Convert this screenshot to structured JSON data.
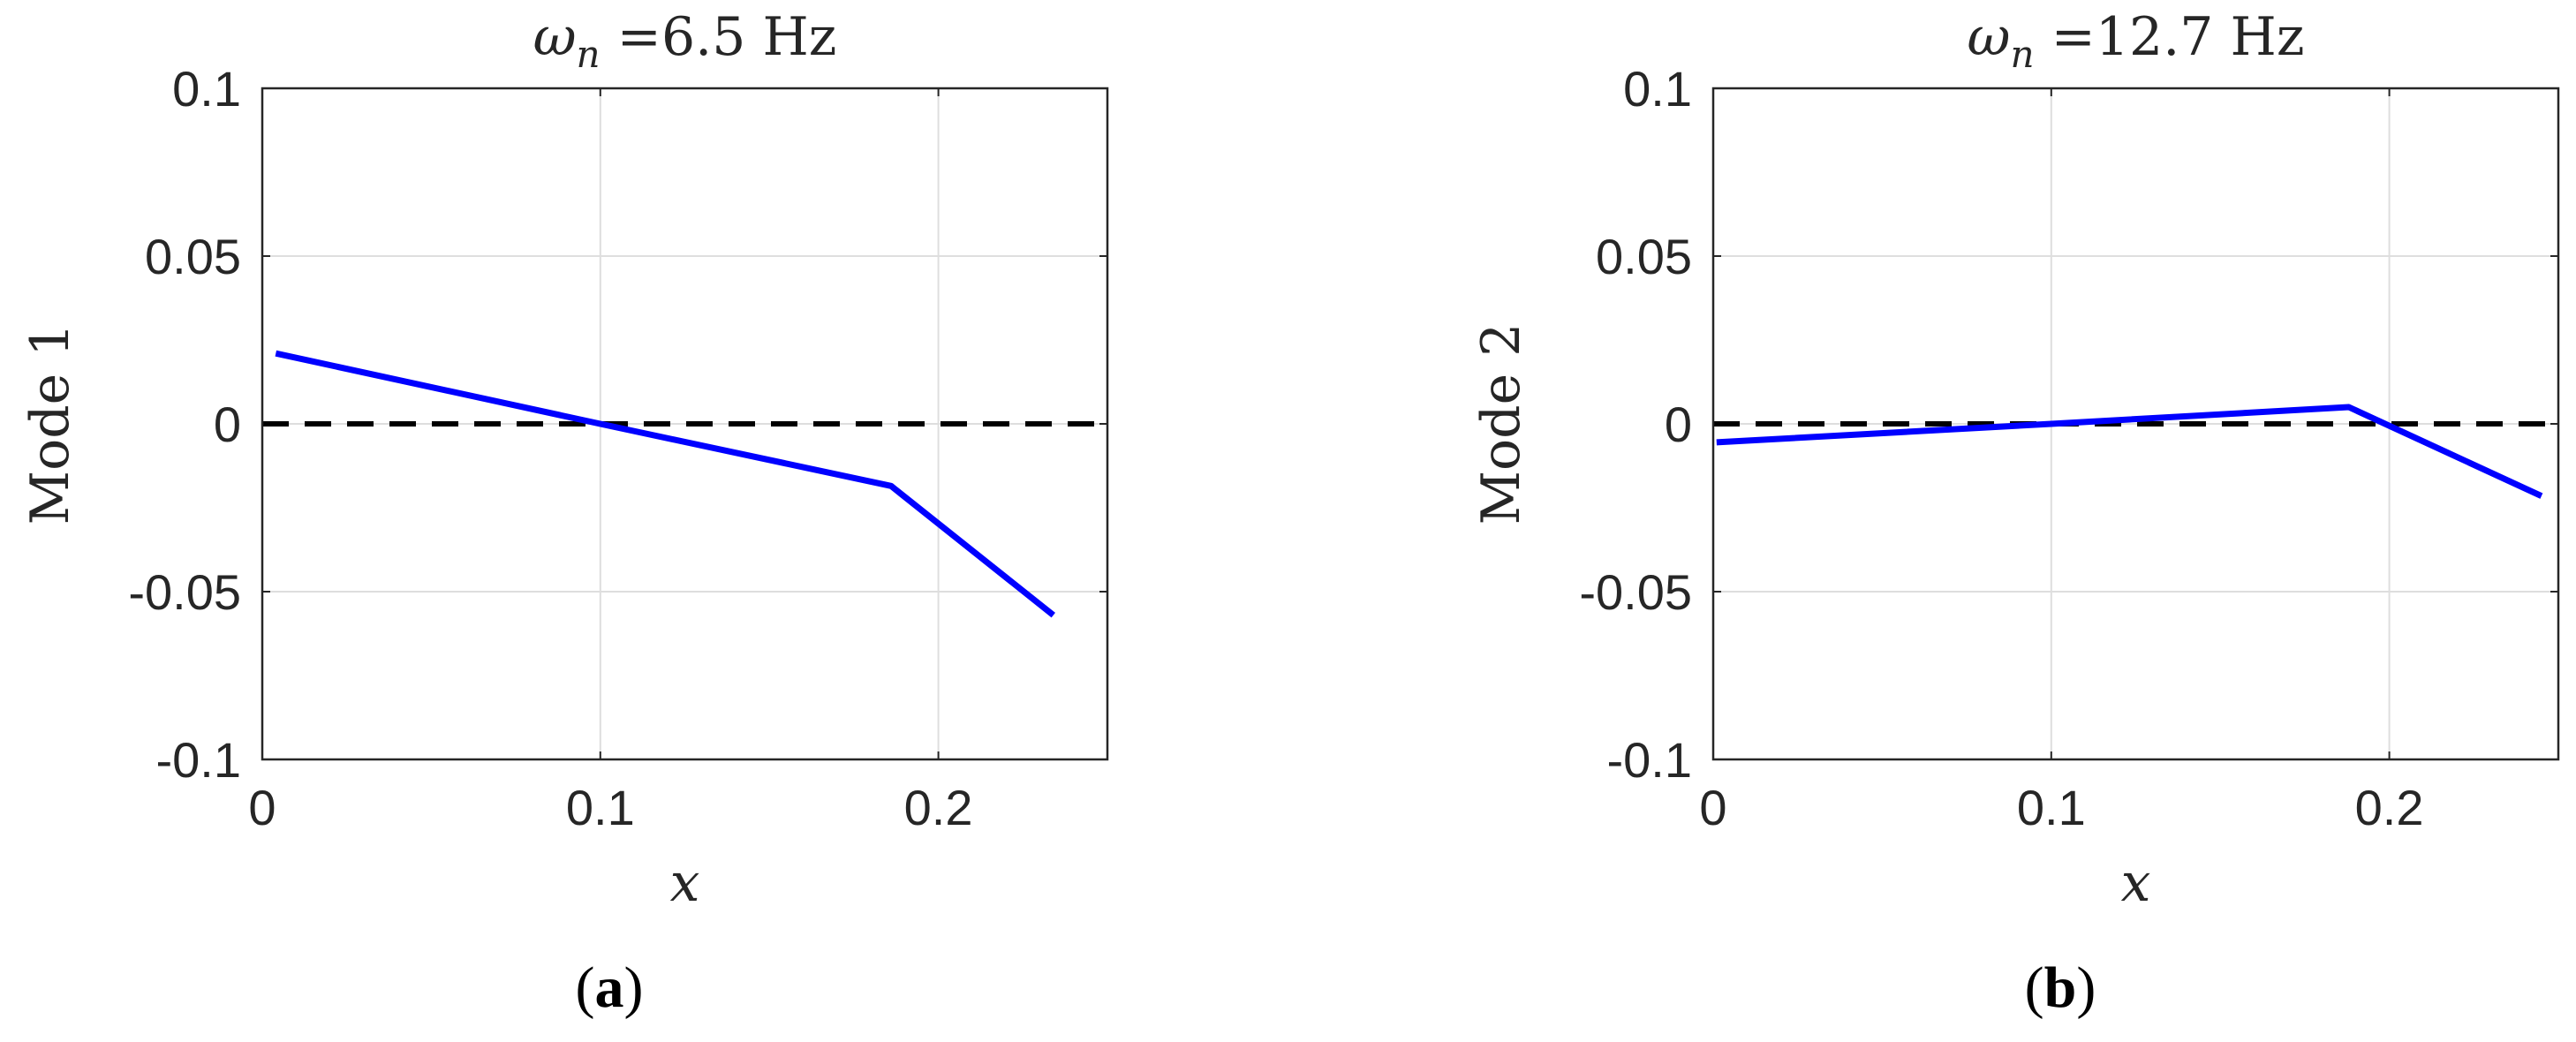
{
  "chart_data": [
    {
      "type": "line",
      "title": {
        "symbol": "ω",
        "subscript": "n",
        "eq": " =",
        "value": "6.5 Hz"
      },
      "xlabel": "x",
      "ylabel": "Mode 1",
      "caption": {
        "open": "(",
        "letter": "a",
        "close": ")"
      },
      "xlim": [
        0,
        0.25
      ],
      "ylim": [
        -0.1,
        0.1
      ],
      "xticks": [
        0,
        0.1,
        0.2
      ],
      "xtick_labels": [
        "0",
        "0.1",
        "0.2"
      ],
      "yticks": [
        -0.1,
        -0.05,
        0,
        0.05,
        0.1
      ],
      "ytick_labels": [
        "-0.1",
        "-0.05",
        "0",
        "0.05",
        "0.1"
      ],
      "grid": true,
      "series": [
        {
          "x": [
            0.004,
            0.1,
            0.186,
            0.234
          ],
          "y": [
            0.021,
            0.0,
            -0.0185,
            -0.057
          ],
          "color": "#0000ff",
          "style": "solid"
        }
      ],
      "reference_line": {
        "y": 0,
        "color": "#000000",
        "style": "dashed"
      }
    },
    {
      "type": "line",
      "title": {
        "symbol": "ω",
        "subscript": "n",
        "eq": " =",
        "value": "12.7 Hz"
      },
      "xlabel": "x",
      "ylabel": "Mode 2",
      "caption": {
        "open": "(",
        "letter": "b",
        "close": ")"
      },
      "xlim": [
        0,
        0.25
      ],
      "ylim": [
        -0.1,
        0.1
      ],
      "xticks": [
        0,
        0.1,
        0.2
      ],
      "xtick_labels": [
        "0",
        "0.1",
        "0.2"
      ],
      "yticks": [
        -0.1,
        -0.05,
        0,
        0.05,
        0.1
      ],
      "ytick_labels": [
        "-0.1",
        "-0.05",
        "0",
        "0.05",
        "0.1"
      ],
      "grid": true,
      "series": [
        {
          "x": [
            0.001,
            0.1,
            0.188,
            0.245
          ],
          "y": [
            -0.0055,
            0.0,
            0.005,
            -0.0215
          ],
          "color": "#0000ff",
          "style": "solid"
        }
      ],
      "reference_line": {
        "y": 0,
        "color": "#000000",
        "style": "dashed"
      }
    }
  ]
}
